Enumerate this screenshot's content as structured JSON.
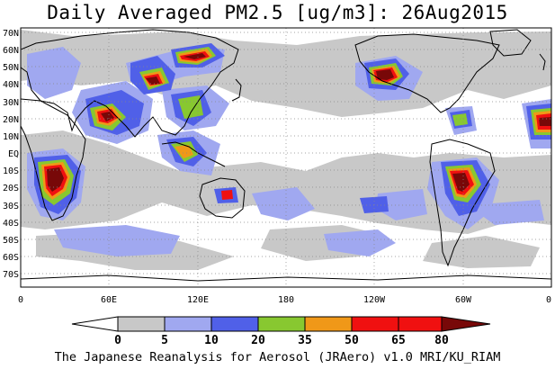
{
  "title": "Daily Averaged PM2.5 [ug/m3]: 26Aug2015",
  "footer": "The Japanese Reanalysis for Aerosol (JRAero) v1.0 MRI/KU_RIAM",
  "map": {
    "projection": "cylindrical equidistant",
    "lon_range": [
      0,
      360
    ],
    "lat_range": [
      -75,
      75
    ],
    "lat_labels": [
      "70N",
      "60N",
      "50N",
      "40N",
      "30N",
      "20N",
      "10N",
      "EQ",
      "10S",
      "20S",
      "30S",
      "40S",
      "50S",
      "60S",
      "70S"
    ],
    "lon_labels": [
      "0",
      "60E",
      "120E",
      "180",
      "120W",
      "60W",
      "0"
    ],
    "gridlines": "dotted"
  },
  "legend": {
    "levels": [
      "0",
      "5",
      "10",
      "20",
      "35",
      "50",
      "65",
      "80"
    ],
    "colors": [
      "#ffffff",
      "#c8c8c8",
      "#a0a8f0",
      "#5060e8",
      "#88c830",
      "#f09818",
      "#f01010",
      "#780808"
    ]
  },
  "colors": {
    "land_outline": "#000000",
    "background": "#ffffff"
  }
}
